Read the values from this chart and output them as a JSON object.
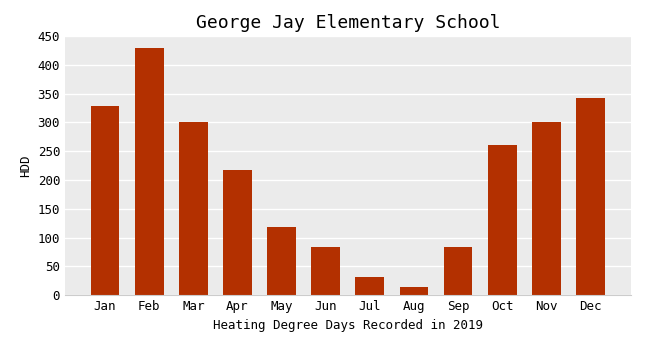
{
  "title": "George Jay Elementary School",
  "xlabel": "Heating Degree Days Recorded in 2019",
  "ylabel": "HDD",
  "categories": [
    "Jan",
    "Feb",
    "Mar",
    "Apr",
    "May",
    "Jun",
    "Jul",
    "Aug",
    "Sep",
    "Oct",
    "Nov",
    "Dec"
  ],
  "values": [
    329,
    429,
    301,
    217,
    118,
    83,
    31,
    15,
    83,
    261,
    301,
    343
  ],
  "bar_color": "#b33000",
  "fig_bg_color": "#ffffff",
  "plot_bg_color": "#ebebeb",
  "ylim": [
    0,
    450
  ],
  "yticks": [
    0,
    50,
    100,
    150,
    200,
    250,
    300,
    350,
    400,
    450
  ],
  "title_fontsize": 13,
  "label_fontsize": 9,
  "tick_fontsize": 9
}
